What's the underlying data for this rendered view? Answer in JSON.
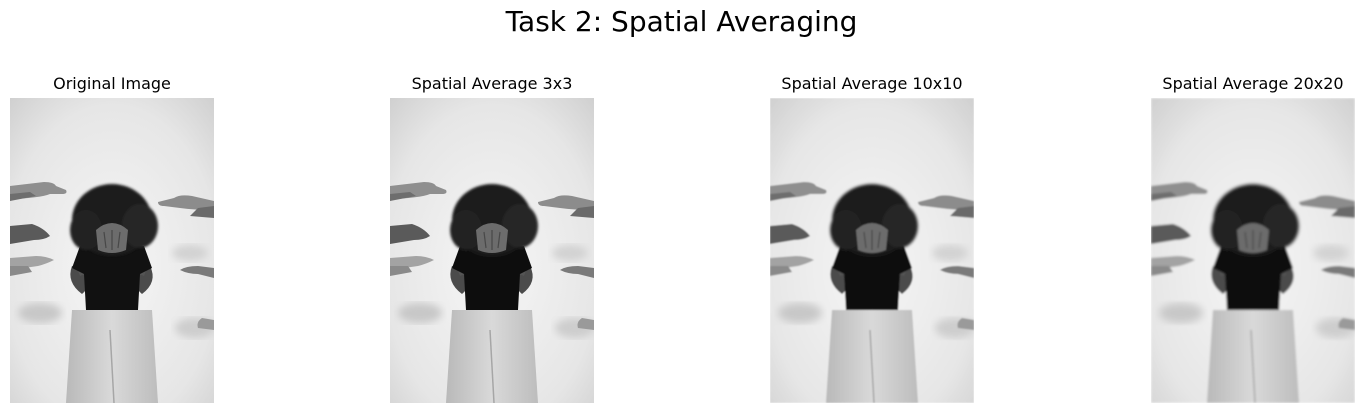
{
  "figure": {
    "suptitle": "Task 2: Spatial Averaging"
  },
  "panels": [
    {
      "title": "Original Image",
      "blur": 0
    },
    {
      "title": "Spatial Average 3x3",
      "blur": 0.35
    },
    {
      "title": "Spatial Average 10x10",
      "blur": 0.7
    },
    {
      "title": "Spatial Average 20x20",
      "blur": 1.1
    }
  ]
}
